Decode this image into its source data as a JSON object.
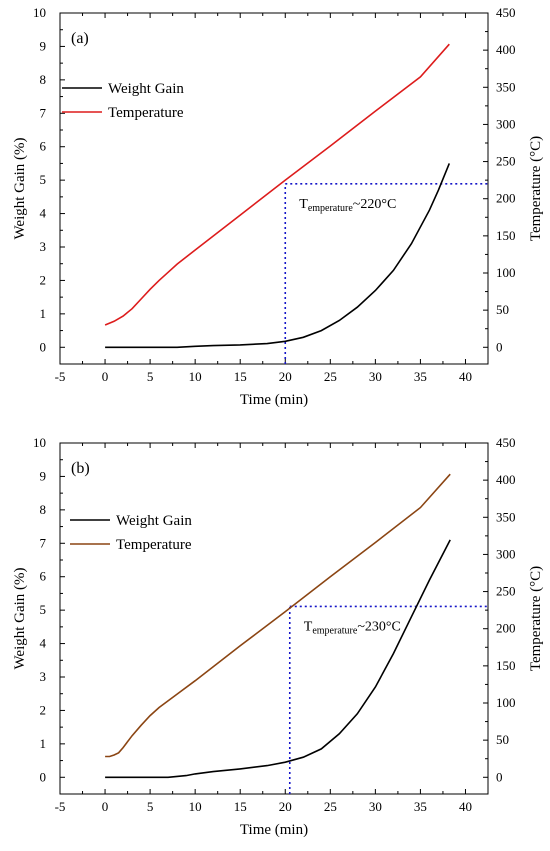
{
  "chart_data": [
    {
      "type": "line",
      "panel_label": "(a)",
      "xlabel": "Time (min)",
      "ylabel": "Weight Gain (%)",
      "y2label": "Temperature (°C)",
      "xlim": [
        -5,
        42.5
      ],
      "ylim": [
        -0.5,
        10
      ],
      "y2lim": [
        -22.5,
        450
      ],
      "xticks": [
        "-5",
        "0",
        "5",
        "10",
        "15",
        "20",
        "25",
        "30",
        "35",
        "40"
      ],
      "yticks": [
        "0",
        "1",
        "2",
        "3",
        "4",
        "5",
        "6",
        "7",
        "8",
        "9",
        "10"
      ],
      "y2ticks": [
        "0",
        "50",
        "100",
        "150",
        "200",
        "250",
        "300",
        "350",
        "400",
        "450"
      ],
      "legend_position": "upper-left",
      "grid": false,
      "series": [
        {
          "name": "Weight Gain",
          "axis": "left",
          "color": "#000000",
          "x": [
            0,
            5,
            8,
            10,
            12,
            15,
            18,
            20,
            22,
            24,
            26,
            28,
            30,
            32,
            34,
            36,
            37,
            38.2
          ],
          "values": [
            0,
            0,
            0,
            0.03,
            0.05,
            0.07,
            0.11,
            0.18,
            0.3,
            0.5,
            0.8,
            1.2,
            1.7,
            2.3,
            3.1,
            4.1,
            4.7,
            5.5
          ]
        },
        {
          "name": "Temperature",
          "axis": "right",
          "color": "#dd1c1c",
          "x": [
            0,
            1,
            2,
            3,
            4,
            5,
            6,
            7,
            8,
            10,
            15,
            20,
            25,
            30,
            35,
            38.2
          ],
          "values": [
            30,
            35,
            42,
            52,
            65,
            78,
            90,
            101,
            112,
            131,
            178,
            225,
            271,
            318,
            364,
            408
          ]
        }
      ],
      "annotation": {
        "text_main": "T",
        "text_sub": "emperature",
        "text_tail": "~220°C",
        "x": 20,
        "y2": 220,
        "color": "#1515c8"
      }
    },
    {
      "type": "line",
      "panel_label": "(b)",
      "xlabel": "Time (min)",
      "ylabel": "Weight Gain (%)",
      "y2label": "Temperature (°C)",
      "xlim": [
        -5,
        42.5
      ],
      "ylim": [
        -0.5,
        10
      ],
      "y2lim": [
        -22.5,
        450
      ],
      "xticks": [
        "-5",
        "0",
        "5",
        "10",
        "15",
        "20",
        "25",
        "30",
        "35",
        "40"
      ],
      "yticks": [
        "0",
        "1",
        "2",
        "3",
        "4",
        "5",
        "6",
        "7",
        "8",
        "9",
        "10"
      ],
      "y2ticks": [
        "0",
        "50",
        "100",
        "150",
        "200",
        "250",
        "300",
        "350",
        "400",
        "450"
      ],
      "legend_position": "upper-left",
      "grid": false,
      "series": [
        {
          "name": "Weight Gain",
          "axis": "left",
          "color": "#000000",
          "x": [
            0,
            5,
            7,
            9,
            10,
            12,
            15,
            18,
            20,
            22,
            24,
            26,
            28,
            30,
            32,
            34,
            36,
            38.3
          ],
          "values": [
            0,
            0,
            0,
            0.05,
            0.1,
            0.17,
            0.25,
            0.35,
            0.45,
            0.6,
            0.85,
            1.3,
            1.9,
            2.7,
            3.7,
            4.8,
            5.9,
            7.1
          ]
        },
        {
          "name": "Temperature",
          "axis": "right",
          "color": "#8b4513",
          "x": [
            0,
            0.5,
            1,
            1.5,
            2,
            3,
            4,
            5,
            6,
            8,
            10,
            15,
            20,
            25,
            30,
            35,
            38.3
          ],
          "values": [
            28,
            28,
            30,
            33,
            40,
            56,
            70,
            83,
            94,
            112,
            130,
            177,
            223,
            270,
            316,
            363,
            408
          ]
        }
      ],
      "annotation": {
        "text_main": "T",
        "text_sub": "emperature",
        "text_tail": "~230°C",
        "x": 20.5,
        "y2": 230,
        "color": "#1515c8"
      }
    }
  ]
}
